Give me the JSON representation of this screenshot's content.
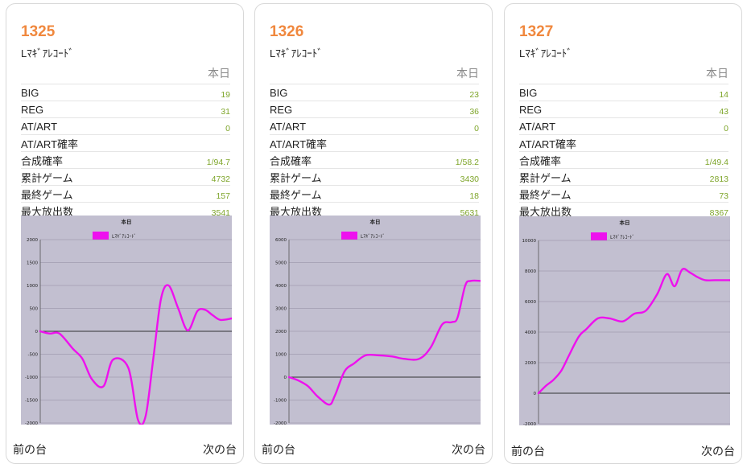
{
  "cards": [
    {
      "number": "1325",
      "name": "Lﾏｷﾞｱﾚｺｰﾄﾞ",
      "header": "本日",
      "stats": [
        {
          "label": "BIG",
          "value": "19"
        },
        {
          "label": "REG",
          "value": "31"
        },
        {
          "label": "AT/ART",
          "value": "0"
        },
        {
          "label": "AT/ART確率",
          "value": ""
        },
        {
          "label": "合成確率",
          "value": "1/94.7"
        },
        {
          "label": "累計ゲーム",
          "value": "4732"
        },
        {
          "label": "最終ゲーム",
          "value": "157"
        },
        {
          "label": "最大放出数",
          "value": "3541"
        }
      ],
      "nav": {
        "prev": "前の台",
        "next": "次の台"
      },
      "chart_data": {
        "type": "line",
        "title": "本日",
        "legend": "Lﾏｷﾞｱﾚｺｰﾄﾞ",
        "series_color": "#ee11ee",
        "ylim": [
          -2000,
          2000
        ],
        "yticks": [
          "2000",
          "1500",
          "1000",
          "500",
          "0",
          "-500",
          "-1000",
          "-1500",
          "-2000"
        ],
        "x": [
          0,
          0.05,
          0.1,
          0.17,
          0.22,
          0.27,
          0.33,
          0.38,
          0.46,
          0.51,
          0.55,
          0.59,
          0.63,
          0.67,
          0.72,
          0.77,
          0.82,
          0.86,
          0.9,
          0.94,
          1
        ],
        "y": [
          0,
          -50,
          -50,
          -380,
          -600,
          -1050,
          -1200,
          -620,
          -800,
          -1930,
          -1850,
          -600,
          700,
          1000,
          500,
          20,
          440,
          470,
          350,
          250,
          280
        ]
      }
    },
    {
      "number": "1326",
      "name": "Lﾏｷﾞｱﾚｺｰﾄﾞ",
      "header": "本日",
      "stats": [
        {
          "label": "BIG",
          "value": "23"
        },
        {
          "label": "REG",
          "value": "36"
        },
        {
          "label": "AT/ART",
          "value": "0"
        },
        {
          "label": "AT/ART確率",
          "value": ""
        },
        {
          "label": "合成確率",
          "value": "1/58.2"
        },
        {
          "label": "累計ゲーム",
          "value": "3430"
        },
        {
          "label": "最終ゲーム",
          "value": "18"
        },
        {
          "label": "最大放出数",
          "value": "5631"
        }
      ],
      "nav": {
        "prev": "前の台",
        "next": "次の台"
      },
      "chart_data": {
        "type": "line",
        "title": "本日",
        "legend": "Lﾏｷﾞｱﾚｺｰﾄﾞ",
        "series_color": "#ee11ee",
        "ylim": [
          -2000,
          6000
        ],
        "yticks": [
          "6000",
          "5000",
          "4000",
          "3000",
          "2000",
          "1000",
          "0",
          "-1000",
          "-2000"
        ],
        "x": [
          0,
          0.05,
          0.1,
          0.15,
          0.21,
          0.24,
          0.29,
          0.34,
          0.4,
          0.47,
          0.54,
          0.6,
          0.68,
          0.74,
          0.8,
          0.85,
          0.88,
          0.92,
          0.95,
          1
        ],
        "y": [
          0,
          -150,
          -400,
          -850,
          -1200,
          -800,
          250,
          600,
          950,
          950,
          900,
          800,
          800,
          1300,
          2300,
          2400,
          2600,
          4000,
          4200,
          4200
        ]
      }
    },
    {
      "number": "1327",
      "name": "Lﾏｷﾞｱﾚｺｰﾄﾞ",
      "header": "本日",
      "stats": [
        {
          "label": "BIG",
          "value": "14"
        },
        {
          "label": "REG",
          "value": "43"
        },
        {
          "label": "AT/ART",
          "value": "0"
        },
        {
          "label": "AT/ART確率",
          "value": ""
        },
        {
          "label": "合成確率",
          "value": "1/49.4"
        },
        {
          "label": "累計ゲーム",
          "value": "2813"
        },
        {
          "label": "最終ゲーム",
          "value": "73"
        },
        {
          "label": "最大放出数",
          "value": "8367"
        }
      ],
      "nav": {
        "prev": "前の台",
        "next": "次の台"
      },
      "chart_data": {
        "type": "line",
        "title": "本日",
        "legend": "Lﾏｷﾞｱﾚｺｰﾄﾞ",
        "series_color": "#ee11ee",
        "ylim": [
          -2000,
          10000
        ],
        "yticks": [
          "10000",
          "8000",
          "6000",
          "4000",
          "2000",
          "0",
          "-2000"
        ],
        "x": [
          0,
          0.04,
          0.08,
          0.12,
          0.16,
          0.21,
          0.25,
          0.31,
          0.37,
          0.44,
          0.5,
          0.56,
          0.62,
          0.67,
          0.71,
          0.75,
          0.79,
          0.83,
          0.87,
          0.92,
          0.96,
          1
        ],
        "y": [
          0,
          500,
          900,
          1500,
          2500,
          3700,
          4200,
          4900,
          4900,
          4700,
          5200,
          5400,
          6500,
          7800,
          7000,
          8100,
          7900,
          7600,
          7400,
          7400,
          7400,
          7400
        ]
      }
    }
  ]
}
